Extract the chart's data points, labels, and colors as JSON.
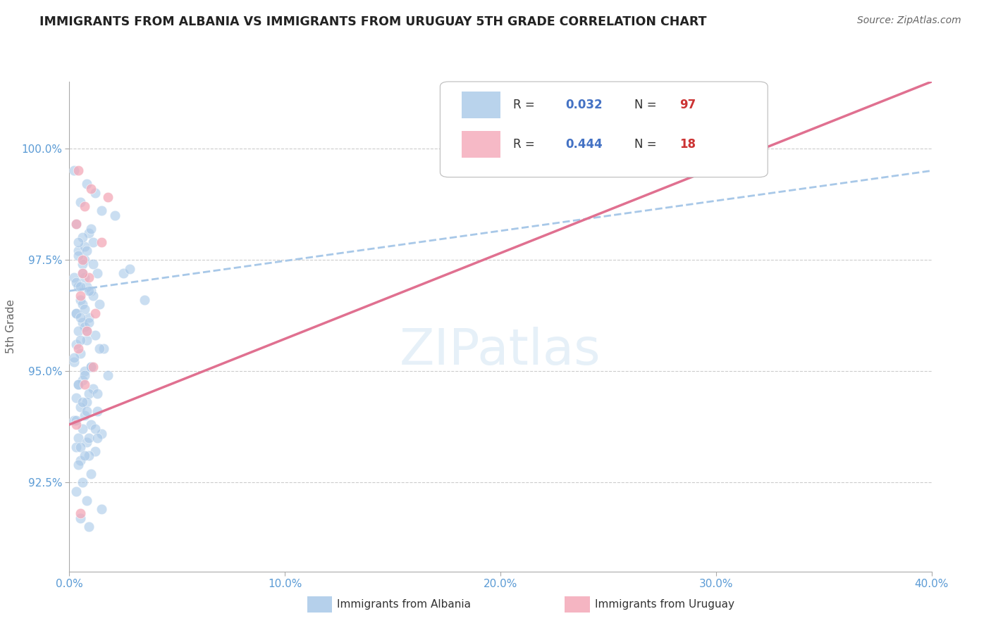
{
  "title": "IMMIGRANTS FROM ALBANIA VS IMMIGRANTS FROM URUGUAY 5TH GRADE CORRELATION CHART",
  "source": "Source: ZipAtlas.com",
  "ylabel": "5th Grade",
  "r_albania": 0.032,
  "n_albania": 97,
  "r_uruguay": 0.444,
  "n_uruguay": 18,
  "xlim": [
    0.0,
    40.0
  ],
  "ylim": [
    90.5,
    101.5
  ],
  "yticks": [
    92.5,
    95.0,
    97.5,
    100.0
  ],
  "ytick_labels": [
    "92.5%",
    "95.0%",
    "97.5%",
    "100.0%"
  ],
  "xticks": [
    0.0,
    10.0,
    20.0,
    30.0,
    40.0
  ],
  "xtick_labels": [
    "0.0%",
    "10.0%",
    "20.0%",
    "30.0%",
    "40.0%"
  ],
  "albania_color": "#a8c8e8",
  "uruguay_color": "#f4a8b8",
  "albania_scatter_x": [
    0.2,
    0.8,
    1.2,
    0.5,
    1.5,
    0.3,
    0.9,
    1.1,
    0.4,
    0.7,
    0.6,
    1.3,
    0.2,
    0.8,
    1.0,
    0.5,
    1.4,
    0.3,
    0.9,
    0.6,
    0.7,
    0.4,
    1.2,
    0.8,
    0.3,
    1.6,
    0.5,
    0.2,
    1.0,
    0.7,
    1.8,
    0.6,
    0.4,
    1.1,
    0.9,
    0.3,
    0.8,
    0.5,
    1.3,
    0.7,
    0.2,
    1.0,
    0.6,
    1.5,
    0.4,
    0.8,
    0.3,
    1.2,
    0.9,
    0.5,
    2.5,
    0.7,
    0.4,
    1.1,
    0.6,
    0.3,
    0.9,
    0.8,
    0.5,
    1.4,
    0.2,
    1.0,
    0.7,
    0.4,
    1.3,
    0.6,
    0.8,
    0.3,
    1.2,
    0.9,
    0.5,
    0.7,
    0.4,
    1.0,
    0.6,
    0.3,
    0.8,
    1.5,
    0.5,
    0.9,
    0.7,
    0.4,
    1.1,
    0.6,
    0.3,
    0.9,
    3.5,
    2.8,
    0.5,
    0.7,
    1.0,
    0.6,
    0.4,
    0.8,
    2.1,
    0.5,
    1.3
  ],
  "albania_scatter_y": [
    99.5,
    99.2,
    99.0,
    98.8,
    98.6,
    98.3,
    98.1,
    97.9,
    97.7,
    97.5,
    97.4,
    97.2,
    97.1,
    96.9,
    96.8,
    96.6,
    96.5,
    96.3,
    96.2,
    96.1,
    96.0,
    95.9,
    95.8,
    95.7,
    95.6,
    95.5,
    95.4,
    95.2,
    95.1,
    95.0,
    94.9,
    94.8,
    94.7,
    94.6,
    94.5,
    94.4,
    94.3,
    94.2,
    94.1,
    94.0,
    93.9,
    93.8,
    93.7,
    93.6,
    93.5,
    93.4,
    93.3,
    93.2,
    93.1,
    93.0,
    97.2,
    97.1,
    96.9,
    96.7,
    96.5,
    96.3,
    96.1,
    95.9,
    95.7,
    95.5,
    95.3,
    95.1,
    94.9,
    94.7,
    94.5,
    94.3,
    94.1,
    93.9,
    93.7,
    93.5,
    93.3,
    93.1,
    92.9,
    92.7,
    92.5,
    92.3,
    92.1,
    91.9,
    91.7,
    91.5,
    97.8,
    97.6,
    97.4,
    97.2,
    97.0,
    96.8,
    96.6,
    97.3,
    96.9,
    96.4,
    98.2,
    98.0,
    97.9,
    97.7,
    98.5,
    96.2,
    93.5
  ],
  "uruguay_scatter_x": [
    0.4,
    1.0,
    0.7,
    0.3,
    1.5,
    0.6,
    0.9,
    0.5,
    1.2,
    0.8,
    0.4,
    1.1,
    0.7,
    0.3,
    0.6,
    24.0,
    1.8,
    0.5
  ],
  "uruguay_scatter_y": [
    99.5,
    99.1,
    98.7,
    98.3,
    97.9,
    97.5,
    97.1,
    96.7,
    96.3,
    95.9,
    95.5,
    95.1,
    94.7,
    93.8,
    97.2,
    100.2,
    98.9,
    91.8
  ],
  "albania_trend_x": [
    0.0,
    40.0
  ],
  "albania_trend_y": [
    96.8,
    99.5
  ],
  "uruguay_trend_x": [
    0.0,
    40.0
  ],
  "uruguay_trend_y": [
    93.8,
    101.5
  ],
  "background_color": "#ffffff",
  "grid_color": "#cccccc",
  "tick_label_color": "#5b9bd5",
  "title_color": "#222222",
  "ylabel_color": "#666666",
  "legend_label_albania": "Immigrants from Albania",
  "legend_label_uruguay": "Immigrants from Uruguay"
}
